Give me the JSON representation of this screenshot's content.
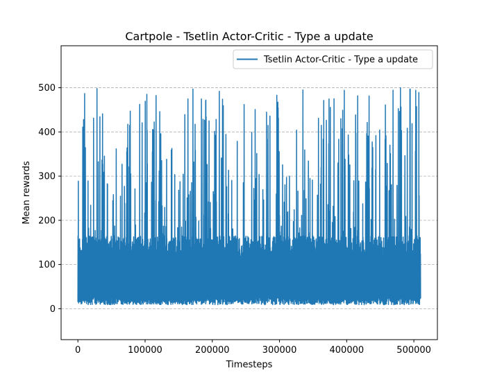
{
  "chart_data": {
    "type": "line",
    "title": "Cartpole - Tsetlin Actor-Critic - Type a update",
    "xlabel": "Timesteps",
    "ylabel": "Mean rewards",
    "xlim": [
      -25000,
      535000
    ],
    "ylim": [
      -70,
      595
    ],
    "x_ticks": [
      0,
      100000,
      200000,
      300000,
      400000,
      500000
    ],
    "x_tick_labels": [
      "0",
      "100000",
      "200000",
      "300000",
      "400000",
      "500000"
    ],
    "y_ticks": [
      0,
      100,
      200,
      300,
      400,
      500
    ],
    "y_tick_labels": [
      "0",
      "100",
      "200",
      "300",
      "400",
      "500"
    ],
    "grid": "horizontal dashed",
    "legend": "upper right",
    "series": [
      {
        "name": "Tsetlin Actor-Critic - Type a update",
        "color": "#1f77b4",
        "x_range": [
          0,
          510000
        ],
        "min_value": 9,
        "max_value": 500,
        "dense_band": [
          10,
          165
        ]
      }
    ]
  }
}
